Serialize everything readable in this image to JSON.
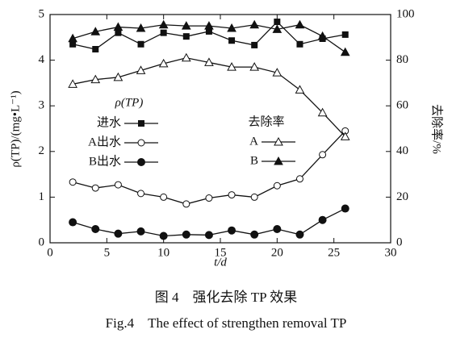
{
  "chart_data": {
    "type": "line",
    "caption_cn": "图 4　强化去除 TP 效果",
    "caption_en": "Fig.4　The effect of strengthen removal TP",
    "xlabel": "t/d",
    "ylabel": "ρ(TP)/(mg•L⁻¹)",
    "y2label": "去除率/%",
    "legend_titles": [
      "ρ(TP)",
      "去除率"
    ],
    "xlim": [
      0,
      30
    ],
    "xticks": [
      0,
      5,
      10,
      15,
      20,
      25,
      30
    ],
    "ylim": [
      0,
      5
    ],
    "yticks": [
      0,
      1,
      2,
      3,
      4,
      5
    ],
    "y2lim": [
      0,
      100
    ],
    "y2ticks": [
      0,
      20,
      40,
      60,
      80,
      100
    ],
    "x": [
      2,
      4,
      6,
      8,
      10,
      12,
      14,
      16,
      18,
      20,
      22,
      24,
      26
    ],
    "series": [
      {
        "name": "进水",
        "color": "#111111",
        "marker": "square-filled",
        "values": [
          4.35,
          4.24,
          4.6,
          4.35,
          4.6,
          4.52,
          4.63,
          4.43,
          4.33,
          4.84,
          4.35,
          4.47,
          4.56
        ]
      },
      {
        "name": "A出水",
        "color": "#111111",
        "marker": "circle-open",
        "values": [
          1.33,
          1.2,
          1.27,
          1.08,
          1.0,
          0.85,
          0.98,
          1.05,
          1.0,
          1.25,
          1.4,
          1.93,
          2.45
        ]
      },
      {
        "name": "B出水",
        "color": "#111111",
        "marker": "circle-filled",
        "values": [
          0.45,
          0.3,
          0.2,
          0.25,
          0.15,
          0.18,
          0.17,
          0.27,
          0.18,
          0.3,
          0.18,
          0.5,
          0.75
        ]
      },
      {
        "name": "A",
        "color": "#111111",
        "marker": "triangle-open",
        "axis": "y2",
        "values": [
          69.5,
          71.5,
          72.5,
          75.5,
          78.5,
          81,
          79,
          77,
          77,
          74.5,
          67,
          57,
          46.5
        ]
      },
      {
        "name": "B",
        "color": "#111111",
        "marker": "triangle-filled",
        "axis": "y2",
        "values": [
          89.5,
          92.5,
          94.5,
          94,
          95.5,
          95,
          95,
          94,
          95.5,
          93.5,
          95.5,
          90.5,
          83.5
        ]
      }
    ]
  }
}
